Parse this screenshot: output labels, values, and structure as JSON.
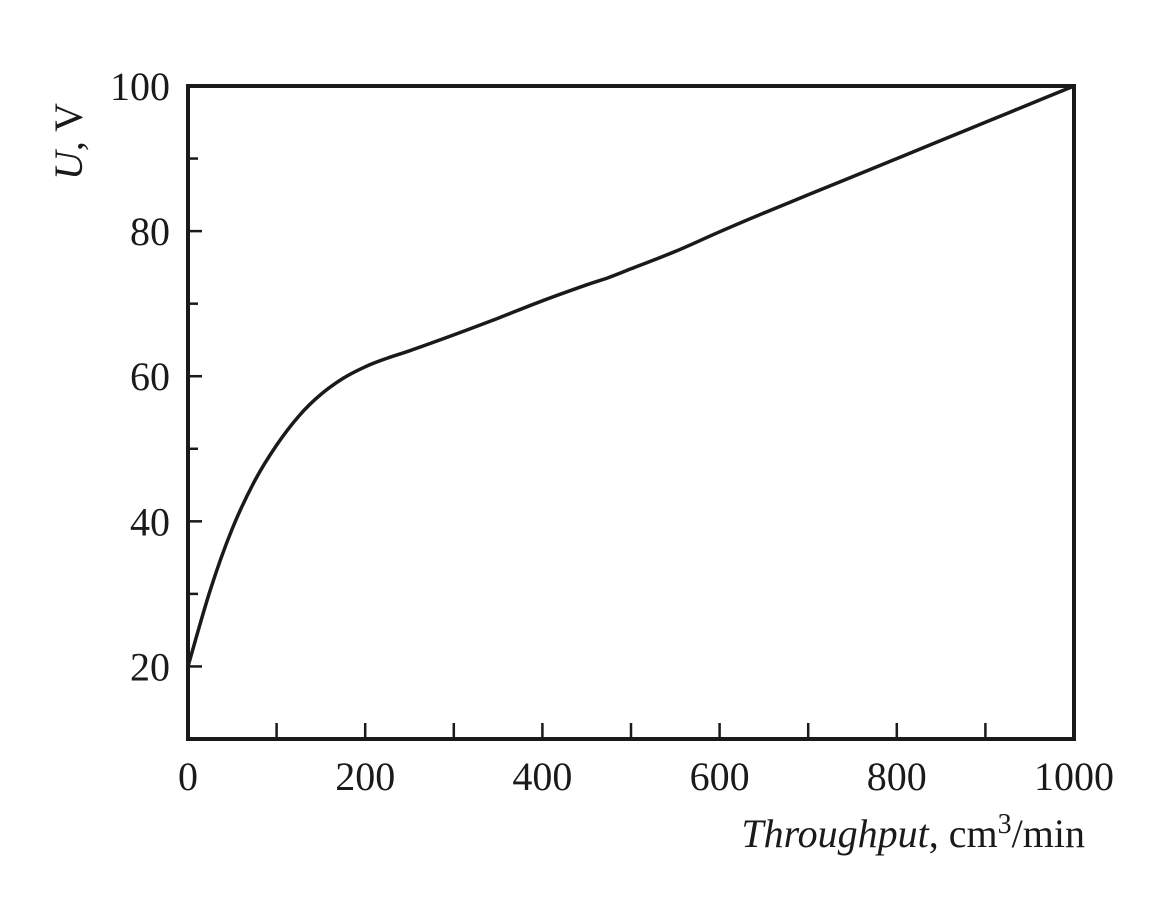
{
  "chart_data": {
    "type": "line",
    "title": "",
    "xlabel_italic": "Throughput",
    "xlabel_unit_prefix": ", cm",
    "xlabel_unit_sup": "3",
    "xlabel_unit_suffix": "/min",
    "ylabel_italic": "U",
    "ylabel_unit": ", V",
    "xlim": [
      0,
      1000
    ],
    "ylim": [
      10,
      100
    ],
    "x_major_ticks": [
      0,
      200,
      400,
      600,
      800,
      1000
    ],
    "x_minor_ticks": [
      100,
      300,
      500,
      700,
      900
    ],
    "y_major_ticks": [
      20,
      40,
      60,
      80,
      100
    ],
    "y_minor_ticks": [
      30,
      50,
      70,
      90
    ],
    "x_tick_labels": [
      "0",
      "200",
      "400",
      "600",
      "800",
      "1000"
    ],
    "y_tick_labels": [
      "20",
      "40",
      "60",
      "80",
      "100"
    ],
    "grid": false,
    "series": [
      {
        "color": "#1a1a1a",
        "x": [
          0,
          25,
          50,
          75,
          100,
          125,
          150,
          175,
          200,
          225,
          250,
          300,
          350,
          400,
          450,
          475,
          500,
          550,
          600,
          650,
          700,
          750,
          800,
          850,
          900,
          950,
          1000
        ],
        "y": [
          20,
          30.5,
          39,
          45.5,
          50.5,
          54.5,
          57.5,
          59.7,
          61.3,
          62.5,
          63.5,
          65.7,
          68,
          70.4,
          72.6,
          73.6,
          74.8,
          77.2,
          79.9,
          82.5,
          85,
          87.5,
          90,
          92.5,
          95,
          97.5,
          100
        ]
      }
    ]
  }
}
